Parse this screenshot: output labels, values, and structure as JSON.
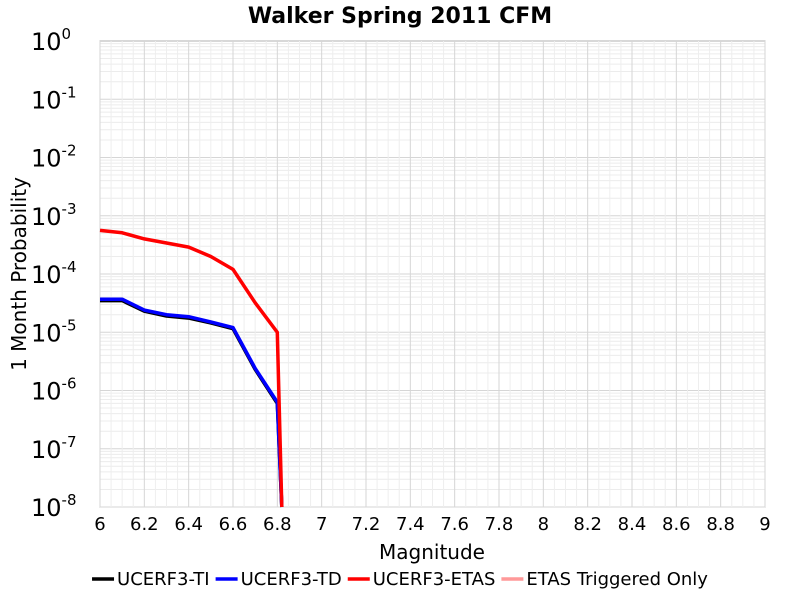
{
  "chart_data": {
    "type": "line",
    "title": "Walker Spring 2011 CFM",
    "xlabel": "Magnitude",
    "ylabel": "1 Month Probability",
    "xlim": [
      6,
      9
    ],
    "ylim": [
      1e-08,
      1
    ],
    "yscale": "log",
    "grid": true,
    "legend_position": "bottom",
    "x_ticks": [
      "6",
      "6.2",
      "6.4",
      "6.6",
      "6.8",
      "7",
      "7.2",
      "7.4",
      "7.6",
      "7.8",
      "8",
      "8.2",
      "8.4",
      "8.6",
      "8.8",
      "9"
    ],
    "y_ticks": [
      {
        "base": "10",
        "exp": "0"
      },
      {
        "base": "10",
        "exp": "-1"
      },
      {
        "base": "10",
        "exp": "-2"
      },
      {
        "base": "10",
        "exp": "-3"
      },
      {
        "base": "10",
        "exp": "-4"
      },
      {
        "base": "10",
        "exp": "-5"
      },
      {
        "base": "10",
        "exp": "-6"
      },
      {
        "base": "10",
        "exp": "-7"
      },
      {
        "base": "10",
        "exp": "-8"
      }
    ],
    "series": [
      {
        "name": "UCERF3-TI",
        "color": "#000000",
        "x": [
          6.0,
          6.1,
          6.2,
          6.3,
          6.4,
          6.5,
          6.6,
          6.7,
          6.8,
          6.82
        ],
        "y": [
          3.5e-05,
          3.5e-05,
          2.3e-05,
          1.9e-05,
          1.75e-05,
          1.45e-05,
          1.15e-05,
          2.3e-06,
          6e-07,
          1e-08
        ]
      },
      {
        "name": "UCERF3-TD",
        "color": "#0000ff",
        "x": [
          6.0,
          6.1,
          6.2,
          6.3,
          6.4,
          6.5,
          6.6,
          6.7,
          6.8,
          6.82
        ],
        "y": [
          3.7e-05,
          3.7e-05,
          2.4e-05,
          2e-05,
          1.85e-05,
          1.5e-05,
          1.2e-05,
          2.4e-06,
          6.3e-07,
          1e-08
        ]
      },
      {
        "name": "UCERF3-ETAS",
        "color": "#ff0000",
        "x": [
          6.0,
          6.1,
          6.2,
          6.3,
          6.4,
          6.5,
          6.6,
          6.7,
          6.8,
          6.82
        ],
        "y": [
          0.00056,
          0.00051,
          0.0004,
          0.00034,
          0.00029,
          0.0002,
          0.00012,
          3.2e-05,
          1e-05,
          1e-08
        ]
      },
      {
        "name": "ETAS Triggered Only",
        "color": "#ff9999",
        "x": [],
        "y": []
      }
    ]
  }
}
